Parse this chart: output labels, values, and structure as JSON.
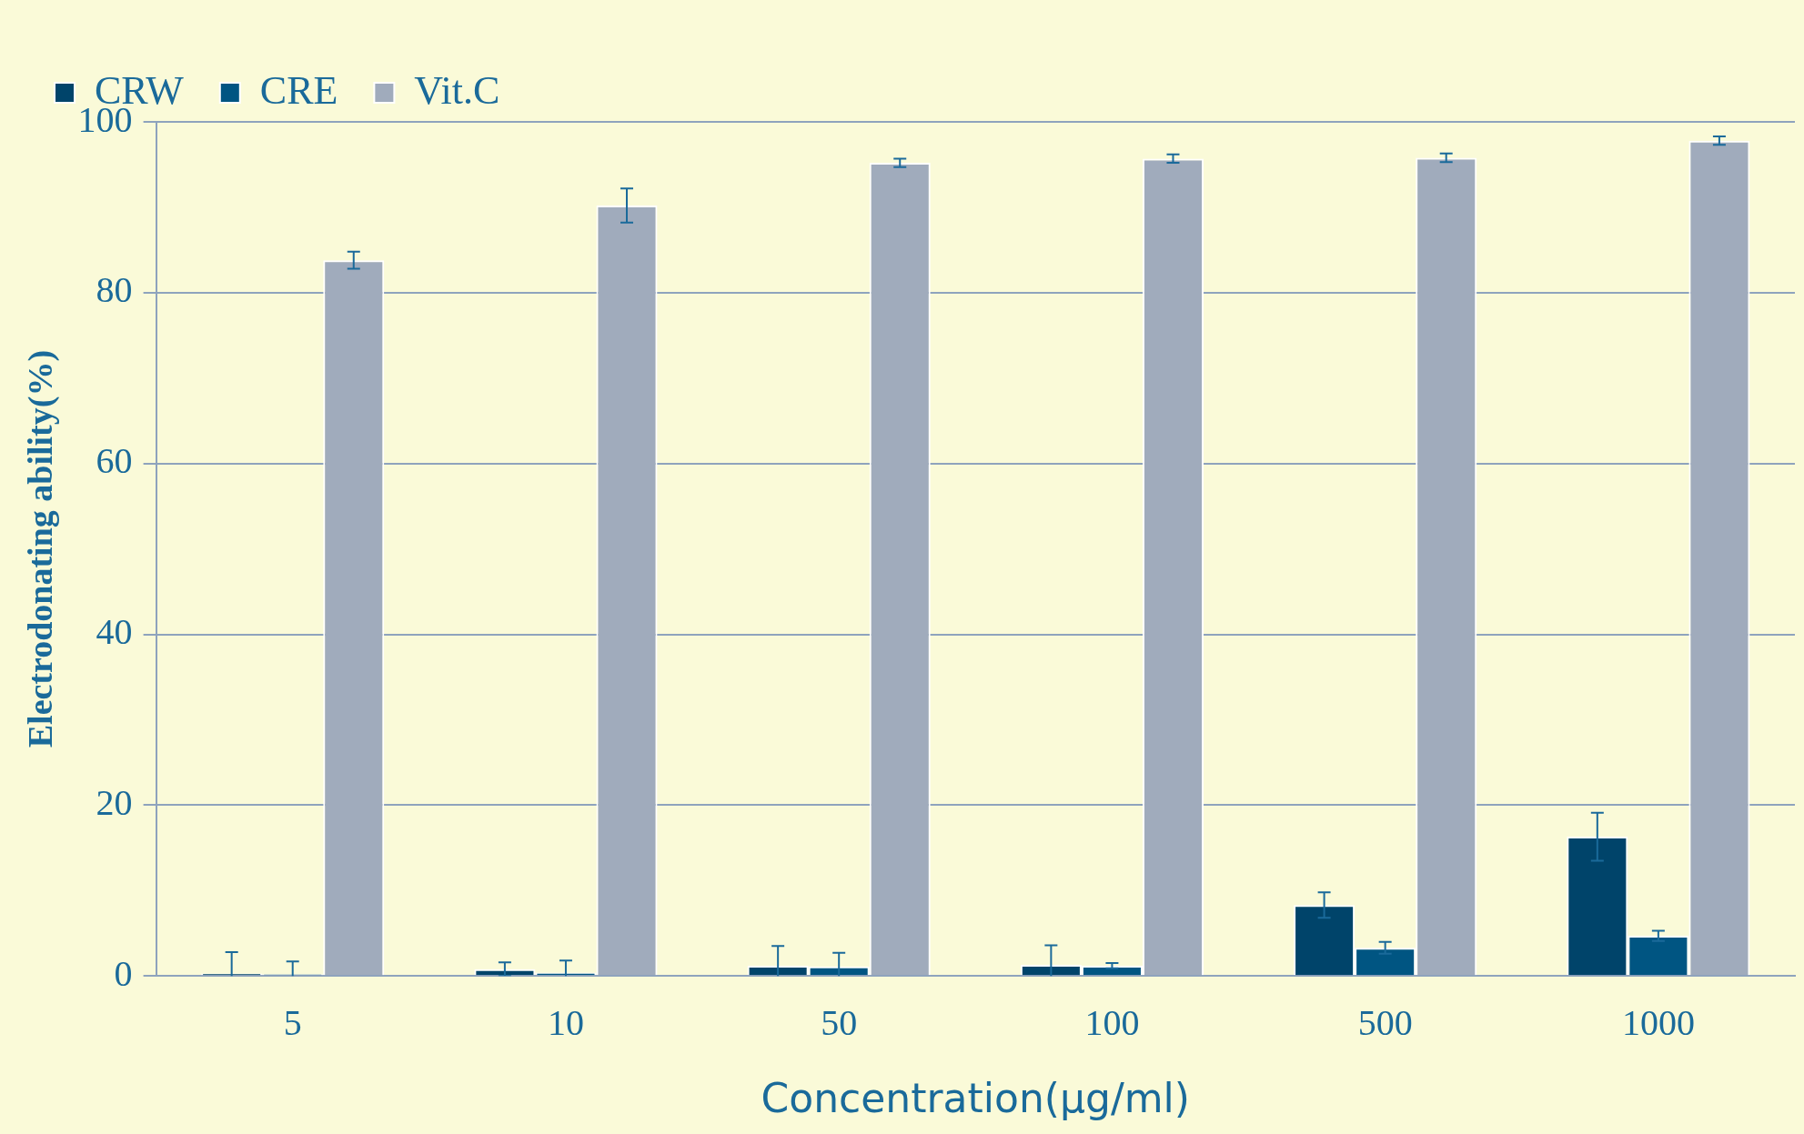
{
  "chart_data": {
    "type": "bar",
    "xlabel": "Concentration(μg/ml)",
    "ylabel": "Electrodonating ability(%)",
    "categories": [
      "5",
      "10",
      "50",
      "100",
      "500",
      "1000"
    ],
    "series": [
      {
        "name": "CRW",
        "color": "#00446a",
        "values": [
          0.3,
          0.8,
          1.2,
          1.3,
          8.3,
          16.3
        ],
        "errors": [
          2.5,
          0.8,
          2.3,
          2.3,
          1.5,
          2.8
        ]
      },
      {
        "name": "CRE",
        "color": "#005582",
        "values": [
          0.2,
          0.4,
          1.1,
          1.2,
          3.3,
          4.7
        ],
        "errors": [
          1.5,
          1.4,
          1.6,
          0.3,
          0.7,
          0.6
        ]
      },
      {
        "name": "Vit.C",
        "color": "#a0abbc",
        "values": [
          83.8,
          90.2,
          95.2,
          95.7,
          95.8,
          97.8
        ],
        "errors": [
          1,
          2,
          0.5,
          0.5,
          0.5,
          0.5
        ]
      }
    ],
    "ylim": [
      0,
      100
    ],
    "yticks": [
      0,
      20,
      40,
      60,
      80,
      100
    ],
    "grid": "y",
    "legend": "top left"
  }
}
